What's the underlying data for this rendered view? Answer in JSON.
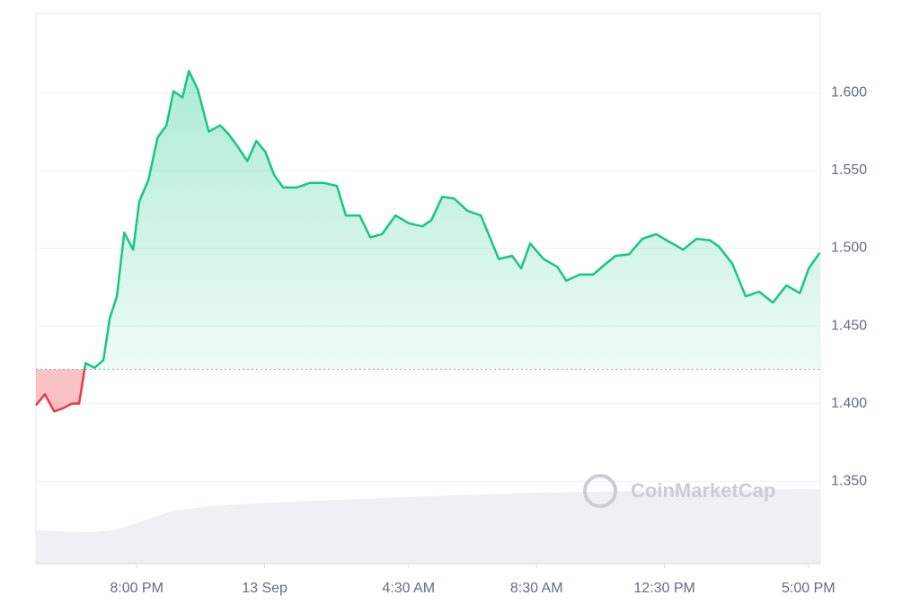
{
  "chart_data": {
    "type": "line",
    "watermark": "CoinMarketCap",
    "x": [
      -7.15,
      -6.87,
      -6.58,
      -6.3,
      -6.02,
      -5.8,
      -5.6,
      -5.32,
      -5.04,
      -4.84,
      -4.62,
      -4.39,
      -4.11,
      -3.92,
      -3.63,
      -3.35,
      -3.07,
      -2.85,
      -2.57,
      -2.37,
      -2.09,
      -1.75,
      -1.39,
      -1.11,
      -0.83,
      -0.54,
      -0.26,
      0.02,
      0.3,
      0.58,
      1.0,
      1.42,
      1.84,
      2.26,
      2.54,
      2.97,
      3.3,
      3.67,
      4.09,
      4.51,
      4.93,
      5.21,
      5.55,
      5.92,
      6.34,
      6.76,
      7.04,
      7.32,
      7.74,
      8.02,
      8.3,
      8.72,
      9.15,
      9.43,
      9.85,
      10.27,
      10.61,
      10.97,
      11.39,
      11.81,
      12.24,
      12.66,
      13.08,
      13.5,
      13.92,
      14.2,
      14.62,
      15.04,
      15.46,
      15.89,
      16.31,
      16.73,
      17.01,
      17.35
    ],
    "series": [
      {
        "color": "#16c784",
        "below_color": "#ea3943",
        "values": [
          1.399,
          1.406,
          1.395,
          1.397,
          1.4,
          1.4,
          1.426,
          1.423,
          1.428,
          1.455,
          1.469,
          1.51,
          1.499,
          1.53,
          1.544,
          1.571,
          1.579,
          1.601,
          1.597,
          1.614,
          1.602,
          1.575,
          1.579,
          1.573,
          1.565,
          1.556,
          1.569,
          1.562,
          1.547,
          1.539,
          1.539,
          1.542,
          1.542,
          1.54,
          1.521,
          1.521,
          1.507,
          1.509,
          1.521,
          1.516,
          1.514,
          1.518,
          1.533,
          1.532,
          1.524,
          1.521,
          1.507,
          1.493,
          1.495,
          1.487,
          1.503,
          1.493,
          1.488,
          1.479,
          1.483,
          1.483,
          1.489,
          1.495,
          1.496,
          1.506,
          1.509,
          1.504,
          1.499,
          1.506,
          1.505,
          1.501,
          1.49,
          1.469,
          1.472,
          1.465,
          1.476,
          1.471,
          1.487,
          1.497
        ]
      }
    ],
    "baseline": 1.422,
    "xlim": [
      -7.15,
      17.37
    ],
    "xticks": [
      {
        "value": -4,
        "label": "8:00 PM"
      },
      {
        "value": 0,
        "label": "13 Sep"
      },
      {
        "value": 4.5,
        "label": "4:30 AM"
      },
      {
        "value": 8.5,
        "label": "8:30 AM"
      },
      {
        "value": 12.5,
        "label": "12:30 PM"
      },
      {
        "value": 17,
        "label": "5:00 PM"
      }
    ],
    "ylim": [
      1.297,
      1.651
    ],
    "yticks": [
      {
        "value": 1.35,
        "label": "1.350"
      },
      {
        "value": 1.4,
        "label": "1.400"
      },
      {
        "value": 1.45,
        "label": "1.450"
      },
      {
        "value": 1.5,
        "label": "1.500"
      },
      {
        "value": 1.55,
        "label": "1.550"
      },
      {
        "value": 1.6,
        "label": "1.600"
      }
    ],
    "grid": true
  }
}
